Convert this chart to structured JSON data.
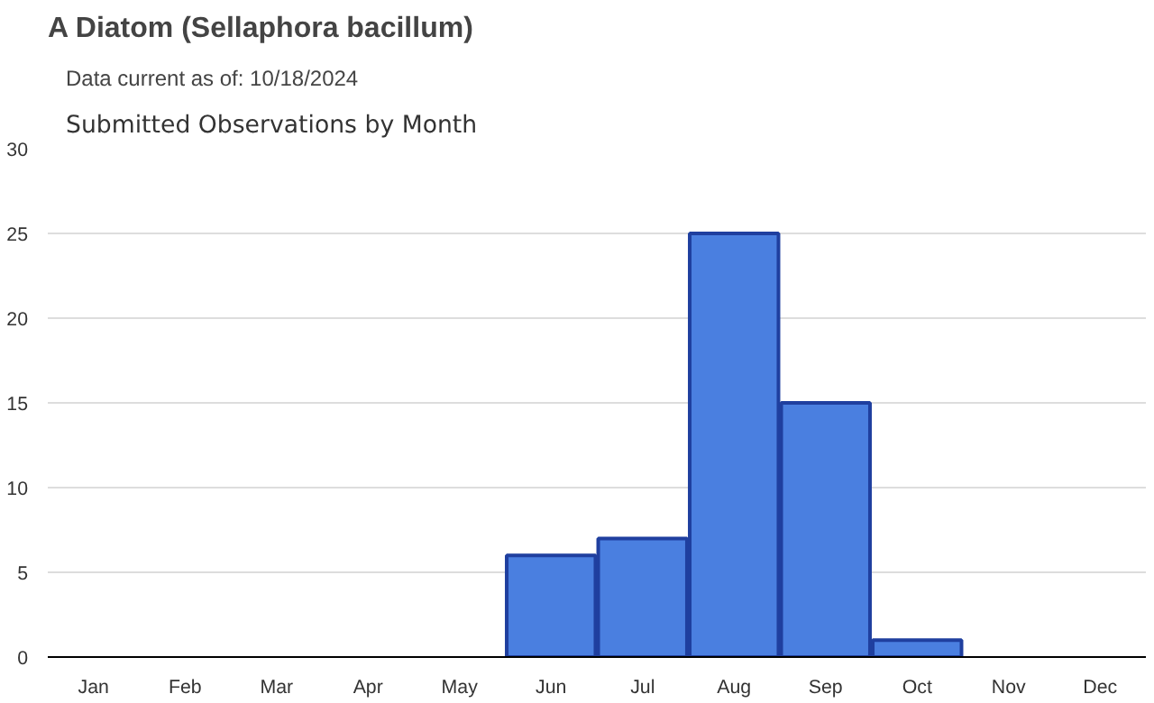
{
  "chart_data": {
    "type": "bar",
    "title": "A Diatom   (Sellaphora bacillum)",
    "subtitle": "Data current as of: 10/18/2024",
    "annotations": [
      "Submitted Observations by Month"
    ],
    "categories": [
      "Jan",
      "Feb",
      "Mar",
      "Apr",
      "May",
      "Jun",
      "Jul",
      "Aug",
      "Sep",
      "Oct",
      "Nov",
      "Dec"
    ],
    "values": [
      0,
      0,
      0,
      0,
      0,
      6,
      7,
      25,
      15,
      1,
      0,
      0
    ],
    "color": "#4a7fe0",
    "ylim": [
      0,
      30
    ],
    "yticks": [
      0,
      5,
      10,
      15,
      20,
      25,
      30
    ],
    "grid": "y"
  }
}
